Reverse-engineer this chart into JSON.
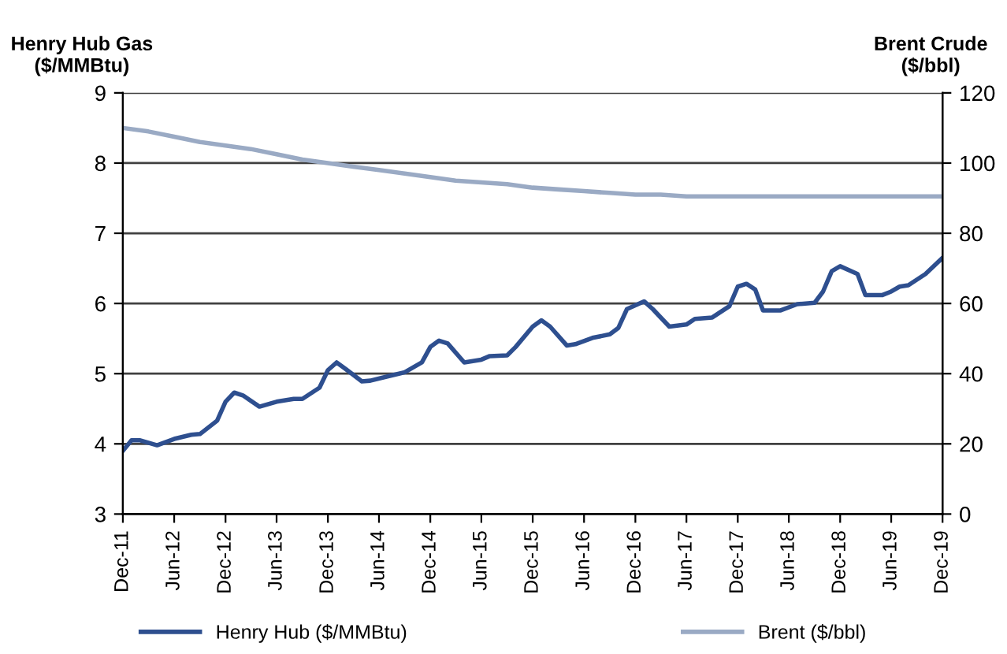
{
  "chart_data": {
    "type": "line",
    "ylabel": "Henry Hub Gas\n($/MMBtu)",
    "y2label": "Brent Crude\n($/bbl)",
    "series": [
      {
        "name": "Henry Hub ($/MMBtu)",
        "color": "#2e4f8f",
        "x": [
          "2011-12",
          "2012-01",
          "2012-02",
          "2012-04",
          "2012-06",
          "2012-08",
          "2012-09",
          "2012-11",
          "2012-12",
          "2013-01",
          "2013-02",
          "2013-04",
          "2013-06",
          "2013-08",
          "2013-09",
          "2013-11",
          "2013-12",
          "2014-01",
          "2014-02",
          "2014-04",
          "2014-05",
          "2014-07",
          "2014-09",
          "2014-11",
          "2014-12",
          "2015-01",
          "2015-02",
          "2015-04",
          "2015-06",
          "2015-07",
          "2015-09",
          "2015-10",
          "2015-12",
          "2016-01",
          "2016-02",
          "2016-04",
          "2016-05",
          "2016-07",
          "2016-09",
          "2016-10",
          "2016-11",
          "2017-01",
          "2017-02",
          "2017-04",
          "2017-06",
          "2017-07",
          "2017-09",
          "2017-11",
          "2017-12",
          "2018-01",
          "2018-02",
          "2018-03",
          "2018-05",
          "2018-07",
          "2018-09",
          "2018-10",
          "2018-11",
          "2018-12",
          "2019-02",
          "2019-03",
          "2019-05",
          "2019-06",
          "2019-07",
          "2019-08",
          "2019-10",
          "2019-12"
        ],
        "values": [
          3.9,
          4.05,
          4.05,
          3.98,
          4.07,
          4.13,
          4.14,
          4.33,
          4.6,
          4.73,
          4.69,
          4.53,
          4.6,
          4.64,
          4.64,
          4.8,
          5.05,
          5.16,
          5.07,
          4.89,
          4.9,
          4.96,
          5.02,
          5.16,
          5.38,
          5.47,
          5.43,
          5.16,
          5.2,
          5.25,
          5.26,
          5.38,
          5.67,
          5.76,
          5.67,
          5.4,
          5.42,
          5.51,
          5.56,
          5.65,
          5.92,
          6.03,
          5.92,
          5.67,
          5.7,
          5.78,
          5.8,
          5.96,
          6.24,
          6.28,
          6.2,
          5.9,
          5.9,
          5.99,
          6.01,
          6.17,
          6.46,
          6.53,
          6.42,
          6.12,
          6.12,
          6.17,
          6.24,
          6.26,
          6.42,
          6.65
        ]
      },
      {
        "name": "Brent ($/bbl)",
        "color": "#9aaac4",
        "axis": "y2",
        "x": [
          "2011-12",
          "2012-03",
          "2012-06",
          "2012-09",
          "2012-12",
          "2013-03",
          "2013-06",
          "2013-09",
          "2013-12",
          "2014-03",
          "2014-06",
          "2014-09",
          "2014-12",
          "2015-03",
          "2015-06",
          "2015-09",
          "2015-12",
          "2016-03",
          "2016-06",
          "2016-09",
          "2016-12",
          "2017-03",
          "2017-06",
          "2019-12"
        ],
        "values": [
          110,
          109,
          107.5,
          106,
          105,
          104,
          102.5,
          101,
          100,
          99,
          98,
          97,
          96,
          95,
          94.5,
          94,
          93,
          92.5,
          92,
          91.5,
          91,
          91,
          90.5,
          90.5
        ]
      }
    ],
    "xlim": [
      "2011-12",
      "2019-12"
    ],
    "xticks": [
      {
        "value": "2011-12",
        "label": "Dec-11"
      },
      {
        "value": "2012-06",
        "label": "Jun-12"
      },
      {
        "value": "2012-12",
        "label": "Dec-12"
      },
      {
        "value": "2013-06",
        "label": "Jun-13"
      },
      {
        "value": "2013-12",
        "label": "Dec-13"
      },
      {
        "value": "2014-06",
        "label": "Jun-14"
      },
      {
        "value": "2014-12",
        "label": "Dec-14"
      },
      {
        "value": "2015-06",
        "label": "Jun-15"
      },
      {
        "value": "2015-12",
        "label": "Dec-15"
      },
      {
        "value": "2016-06",
        "label": "Jun-16"
      },
      {
        "value": "2016-12",
        "label": "Dec-16"
      },
      {
        "value": "2017-06",
        "label": "Jun-17"
      },
      {
        "value": "2017-12",
        "label": "Dec-17"
      },
      {
        "value": "2018-06",
        "label": "Jun-18"
      },
      {
        "value": "2018-12",
        "label": "Dec-18"
      },
      {
        "value": "2019-06",
        "label": "Jun-19"
      },
      {
        "value": "2019-12",
        "label": "Dec-19"
      }
    ],
    "ylim": [
      3,
      9
    ],
    "yticks": [
      3,
      4,
      5,
      6,
      7,
      8,
      9
    ],
    "y2lim": [
      0,
      120
    ],
    "y2ticks": [
      0,
      20,
      40,
      60,
      80,
      100,
      120
    ],
    "grid": "y",
    "legend": "bottom",
    "marker": "none",
    "line_style": "solid"
  }
}
